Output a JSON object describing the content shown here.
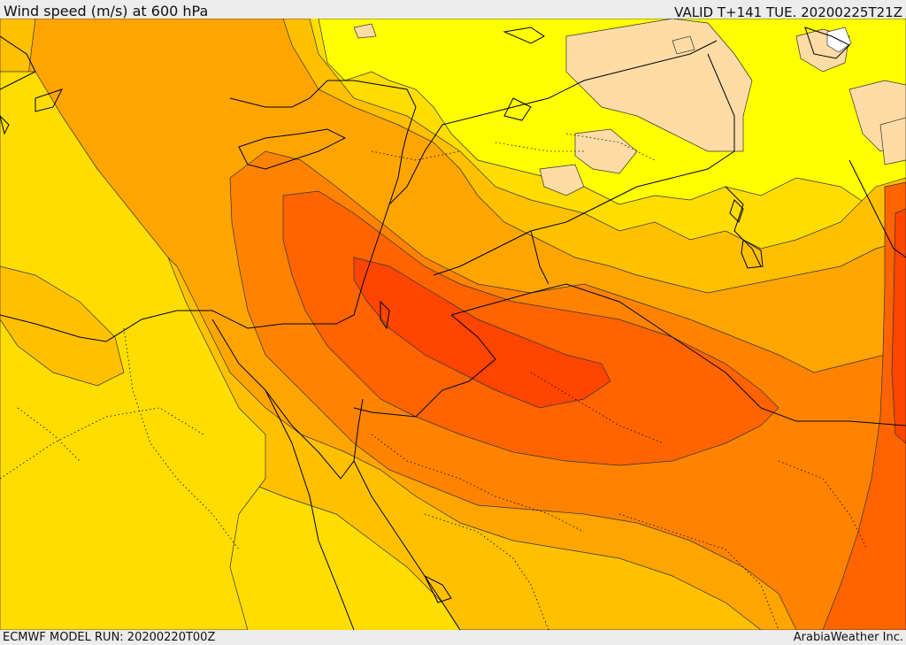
{
  "header": {
    "title": "Wind speed (m/s) at 600 hPa",
    "valid": "VALID T+141 TUE. 20200225T21Z"
  },
  "footer": {
    "model_run": "ECMWF MODEL RUN: 20200220T00Z",
    "brand": "ArabiaWeather Inc."
  },
  "colors": {
    "level_0": "#ffffff",
    "level_1": "#ffdca6",
    "level_2": "#ffff00",
    "level_3": "#ffdd00",
    "level_4": "#ffc000",
    "level_5": "#ffa500",
    "level_6": "#ff8300",
    "level_7": "#ff6400",
    "level_8": "#ff4500",
    "coastline": "#000000",
    "contour": "#333333"
  }
}
